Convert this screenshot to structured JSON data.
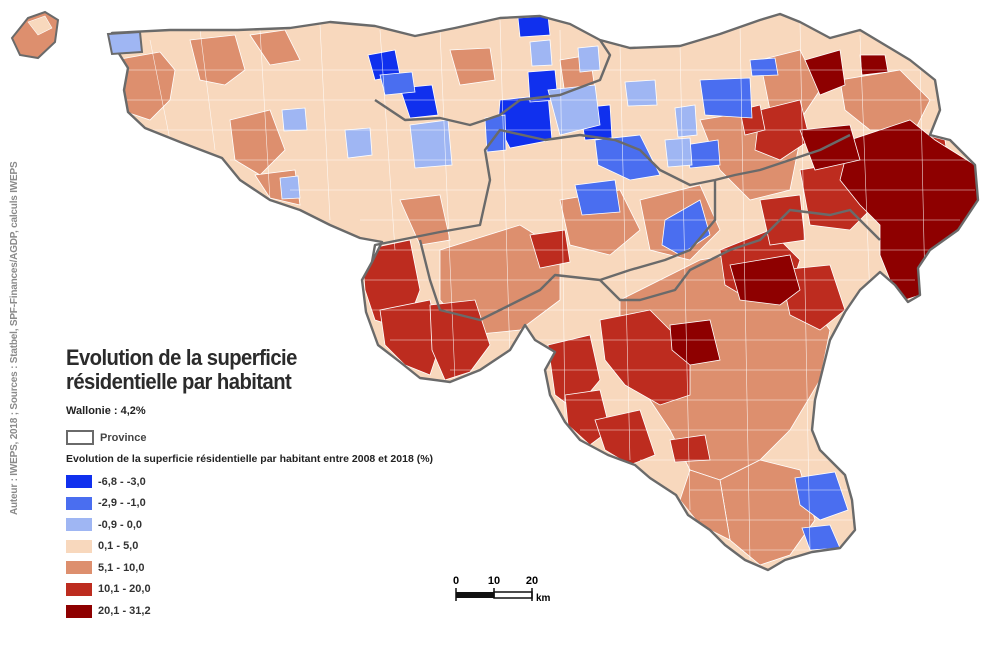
{
  "map": {
    "title_line1": "Evolution de la superficie",
    "title_line2": "résidentielle par habitant",
    "wallonie_label": "Wallonie : ",
    "wallonie_value": "4,2%",
    "province_label": "Province",
    "legend_heading": "Evolution de la superficie résidentielle par habitant entre 2008 et 2018 (%)",
    "credits": "Auteur : IWEPS, 2018 ; Sources : Statbel, SPF-Finances/AGDP, calculs IWEPS",
    "province_border_color": "#6a6a6a",
    "legend": [
      {
        "label": "-6,8 - -3,0",
        "color": "#1030ee"
      },
      {
        "label": "-2,9 - -1,0",
        "color": "#4a6ef0"
      },
      {
        "label": "-0,9 - 0,0",
        "color": "#9fb6f3"
      },
      {
        "label": "0,1 - 5,0",
        "color": "#f8d8bd"
      },
      {
        "label": "5,1 - 10,0",
        "color": "#dd8f6e"
      },
      {
        "label": "10,1 - 20,0",
        "color": "#bd2c1f"
      },
      {
        "label": "20,1 - 31,2",
        "color": "#8e0000"
      }
    ],
    "scale": {
      "ticks": [
        "0",
        "10",
        "20"
      ],
      "unit": "km"
    }
  }
}
